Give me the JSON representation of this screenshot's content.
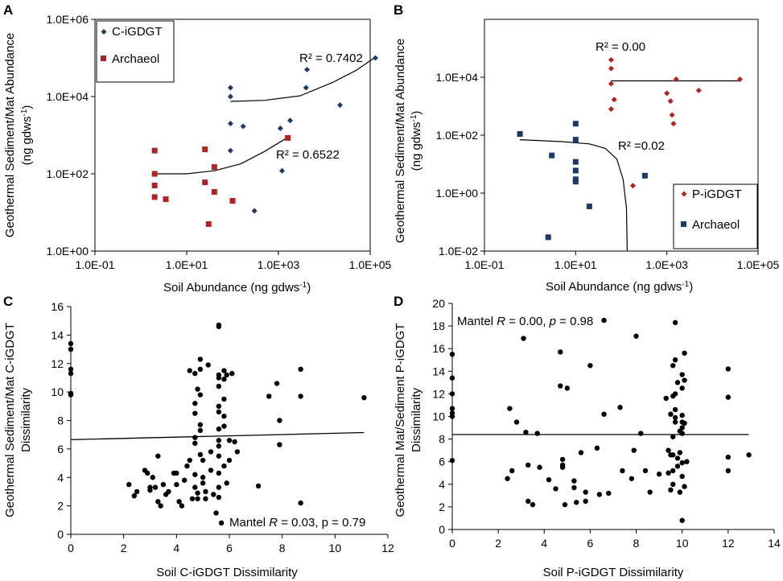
{
  "chart_data": [
    {
      "panel": "A",
      "type": "scatter",
      "xscale": "log",
      "yscale": "log",
      "xlim": [
        0.1,
        100000
      ],
      "ylim": [
        1,
        1000000
      ],
      "xticks": [
        0.1,
        10,
        1000,
        100000
      ],
      "xtick_labels": [
        "1.0E-01",
        "1.0E+01",
        "1.0E+03",
        "1.0E+05"
      ],
      "yticks": [
        1,
        100,
        10000,
        1000000
      ],
      "ytick_labels": [
        "1.0E+00",
        "1.0E+02",
        "1.0E+04",
        "1.0E+06"
      ],
      "xlabel_main": "Soil Abundance (ng gdws",
      "xlabel_sup": "-1",
      "xlabel_end": ")",
      "ylabel_line1": "Geothermal Sediment/Mat Abundance",
      "ylabel_line2_main": "(ng gdws",
      "ylabel_line2_sup": "-1",
      "ylabel_line2_end": ")",
      "legend_position": "top-left",
      "series": [
        {
          "name": "C-iGDGT",
          "marker": "diamond",
          "color": "#1f3864",
          "points": [
            [
              90,
              17000
            ],
            [
              90,
              2000
            ],
            [
              90,
              400
            ],
            [
              90,
              10000
            ],
            [
              170,
              1700
            ],
            [
              300,
              11
            ],
            [
              1100,
              1500
            ],
            [
              1200,
              120
            ],
            [
              1800,
              2400
            ],
            [
              4000,
              17000
            ],
            [
              4200,
              50000
            ],
            [
              22000,
              6000
            ],
            [
              130000,
              100000
            ]
          ],
          "trend": {
            "type": "poly",
            "points": [
              [
                90,
                7500
              ],
              [
                500,
                8000
              ],
              [
                3000,
                10500
              ],
              [
                15000,
                23000
              ],
              [
                50000,
                48000
              ],
              [
                130000,
                105000
              ]
            ]
          },
          "r2": "R² = 0.7402"
        },
        {
          "name": "Archaeol",
          "marker": "square",
          "color": "#b22222",
          "points": [
            [
              2,
              400
            ],
            [
              2,
              100
            ],
            [
              2,
              50
            ],
            [
              2,
              25
            ],
            [
              3.5,
              22
            ],
            [
              25,
              430
            ],
            [
              25,
              60
            ],
            [
              30,
              5
            ],
            [
              40,
              150
            ],
            [
              40,
              34
            ],
            [
              100,
              20
            ],
            [
              1600,
              850
            ]
          ],
          "trend": {
            "type": "poly",
            "points": [
              [
                2,
                100
              ],
              [
                10,
                100
              ],
              [
                40,
                120
              ],
              [
                150,
                180
              ],
              [
                500,
                380
              ],
              [
                1600,
                880
              ]
            ]
          },
          "r2": "R² = 0.6522"
        }
      ]
    },
    {
      "panel": "B",
      "type": "scatter",
      "xscale": "log",
      "yscale": "log",
      "xlim": [
        0.1,
        100000
      ],
      "ylim": [
        0.01,
        1000000
      ],
      "xticks": [
        0.1,
        10,
        1000,
        100000
      ],
      "xtick_labels": [
        "1.0E-01",
        "1.0E+01",
        "1.0E+03",
        "1.0E+05"
      ],
      "yticks": [
        0.01,
        1,
        100,
        10000
      ],
      "ytick_labels": [
        "1.0E-02",
        "1.0E+00",
        "1.0E+02",
        "1.0E+04"
      ],
      "xlabel_main": "Soil Abundance (ng gdws",
      "xlabel_sup": "-1",
      "xlabel_end": ")",
      "ylabel_line1": "Geothermal Sediment/Mat Abundance",
      "ylabel_line2_main": "(ng gdws",
      "ylabel_line2_sup": "-1",
      "ylabel_line2_end": ")",
      "legend_position": "bottom-right",
      "series": [
        {
          "name": "P-iGDGT",
          "marker": "diamond",
          "color": "#b22222",
          "points": [
            [
              60,
              40000
            ],
            [
              60,
              20000
            ],
            [
              60,
              6000
            ],
            [
              60,
              800
            ],
            [
              70,
              1700
            ],
            [
              180,
              1.8
            ],
            [
              1000,
              2800
            ],
            [
              1200,
              1500
            ],
            [
              1300,
              500
            ],
            [
              1400,
              250
            ],
            [
              1600,
              8500
            ],
            [
              5000,
              3500
            ],
            [
              40000,
              8500
            ]
          ],
          "trend": {
            "type": "flat",
            "points": [
              [
                60,
                7500
              ],
              [
                40000,
                7500
              ]
            ]
          },
          "r2": "R² = 0.00"
        },
        {
          "name": "Archaeol",
          "marker": "square",
          "color": "#1f3864",
          "points": [
            [
              0.6,
              110
            ],
            [
              2.5,
              0.03
            ],
            [
              3,
              20
            ],
            [
              10,
              250
            ],
            [
              10,
              70
            ],
            [
              10,
              12
            ],
            [
              10,
              6
            ],
            [
              10,
              3
            ],
            [
              10,
              2.5
            ],
            [
              20,
              0.35
            ],
            [
              330,
              4
            ]
          ],
          "trend": {
            "type": "poly",
            "points": [
              [
                0.6,
                70
              ],
              [
                5,
                60
              ],
              [
                20,
                50
              ],
              [
                45,
                35
              ],
              [
                80,
                15
              ],
              [
                110,
                3
              ],
              [
                130,
                0.3
              ],
              [
                135,
                0.01
              ]
            ]
          },
          "r2": "R² =0.02"
        }
      ]
    },
    {
      "panel": "C",
      "type": "scatter",
      "xlim": [
        0,
        12
      ],
      "ylim": [
        0,
        16
      ],
      "xticks": [
        0,
        2,
        4,
        6,
        8,
        10,
        12
      ],
      "yticks": [
        0,
        2,
        4,
        6,
        8,
        10,
        12,
        14,
        16
      ],
      "xlabel": "Soil C-iGDGT Dissimilarity",
      "ylabel_line1": "Geothermal Sediment/Mat C-iGDGT",
      "ylabel_line2": "Dissimilarity",
      "annotation": {
        "pre": "Mantel ",
        "r": "R",
        "post": " = 0.03, p = 0.79"
      },
      "trend": [
        [
          0,
          6.65
        ],
        [
          11.1,
          7.15
        ]
      ],
      "points": [
        [
          0,
          13.4
        ],
        [
          0,
          13
        ],
        [
          0,
          11.6
        ],
        [
          0,
          11.3
        ],
        [
          0,
          9.9
        ],
        [
          0,
          9.8
        ],
        [
          2.2,
          3.5
        ],
        [
          2.4,
          2.7
        ],
        [
          2.5,
          3.0
        ],
        [
          2.8,
          4.5
        ],
        [
          2.9,
          4.3
        ],
        [
          3.0,
          3.3
        ],
        [
          3.0,
          3.1
        ],
        [
          3.1,
          4.0
        ],
        [
          3.2,
          3.3
        ],
        [
          3.3,
          2.3
        ],
        [
          3.3,
          5.5
        ],
        [
          3.4,
          2.0
        ],
        [
          3.5,
          3.5
        ],
        [
          3.6,
          2.8
        ],
        [
          3.7,
          3.0
        ],
        [
          3.9,
          4.3
        ],
        [
          4.0,
          3.5
        ],
        [
          4.0,
          4.3
        ],
        [
          4.1,
          2.3
        ],
        [
          4.2,
          2.0
        ],
        [
          4.3,
          3.8
        ],
        [
          4.4,
          4.8
        ],
        [
          4.5,
          11.5
        ],
        [
          4.5,
          5.2
        ],
        [
          4.6,
          2.5
        ],
        [
          4.7,
          11.3
        ],
        [
          4.7,
          9.2
        ],
        [
          4.7,
          8.5
        ],
        [
          4.7,
          6.8
        ],
        [
          4.7,
          6.4
        ],
        [
          4.7,
          4.2
        ],
        [
          4.7,
          3.3
        ],
        [
          4.8,
          2.5
        ],
        [
          4.8,
          2.9
        ],
        [
          4.8,
          10.2
        ],
        [
          4.9,
          12.3
        ],
        [
          4.9,
          11.6
        ],
        [
          4.9,
          9.8
        ],
        [
          4.9,
          7.7
        ],
        [
          4.9,
          7.3
        ],
        [
          4.9,
          5.6
        ],
        [
          5.0,
          5.2
        ],
        [
          5.0,
          4.0
        ],
        [
          5.0,
          3.6
        ],
        [
          5.1,
          3.0
        ],
        [
          5.1,
          2.5
        ],
        [
          5.2,
          11.9
        ],
        [
          5.3,
          5.8
        ],
        [
          5.3,
          4.5
        ],
        [
          5.4,
          2.8
        ],
        [
          5.5,
          1.5
        ],
        [
          5.6,
          14.7
        ],
        [
          5.6,
          14.6
        ],
        [
          5.6,
          11.2
        ],
        [
          5.6,
          11.0
        ],
        [
          5.6,
          10.4
        ],
        [
          5.6,
          9.0
        ],
        [
          5.6,
          8.6
        ],
        [
          5.6,
          7.4
        ],
        [
          5.6,
          6.6
        ],
        [
          5.6,
          6.2
        ],
        [
          5.6,
          5.5
        ],
        [
          5.6,
          4.3
        ],
        [
          5.6,
          3.3
        ],
        [
          5.6,
          2.6
        ],
        [
          5.7,
          0.8
        ],
        [
          5.8,
          11.5
        ],
        [
          5.8,
          10.9
        ],
        [
          5.8,
          9.5
        ],
        [
          5.8,
          8.3
        ],
        [
          5.8,
          7.6
        ],
        [
          5.8,
          4.8
        ],
        [
          5.9,
          11.2
        ],
        [
          5.9,
          3.6
        ],
        [
          6.0,
          6.6
        ],
        [
          6.0,
          5.2
        ],
        [
          6.1,
          11.3
        ],
        [
          6.2,
          6.5
        ],
        [
          6.3,
          5.8
        ],
        [
          7.1,
          3.4
        ],
        [
          7.5,
          9.7
        ],
        [
          7.8,
          10.6
        ],
        [
          7.9,
          6.3
        ],
        [
          7.9,
          8.0
        ],
        [
          8.7,
          11.6
        ],
        [
          8.7,
          9.7
        ],
        [
          8.7,
          2.2
        ],
        [
          11.1,
          9.6
        ]
      ]
    },
    {
      "panel": "D",
      "type": "scatter",
      "xlim": [
        0,
        14
      ],
      "ylim": [
        0,
        20
      ],
      "xticks": [
        0,
        2,
        4,
        6,
        8,
        10,
        12,
        14
      ],
      "yticks": [
        0,
        2,
        4,
        6,
        8,
        10,
        12,
        14,
        16,
        18,
        20
      ],
      "xlabel": "Soil P-iGDGT Dissimilarity",
      "ylabel_line1": "Geothermal Mat/Sediment P-iGDGT",
      "ylabel_line2": "Dissimilarity",
      "annotation": {
        "pre": "Mantel ",
        "r": "R",
        "mid": " = 0.00, ",
        "p": "p",
        "post": " = 0.98"
      },
      "trend": [
        [
          0,
          8.4
        ],
        [
          12.9,
          8.4
        ]
      ],
      "points": [
        [
          0,
          15.5
        ],
        [
          0,
          13.4
        ],
        [
          0,
          12.0
        ],
        [
          0,
          10.7
        ],
        [
          0,
          10.3
        ],
        [
          0,
          10.0
        ],
        [
          0,
          6.1
        ],
        [
          2.4,
          4.5
        ],
        [
          2.5,
          10.7
        ],
        [
          2.6,
          5.2
        ],
        [
          2.8,
          9.5
        ],
        [
          3.1,
          16.9
        ],
        [
          3.2,
          8.6
        ],
        [
          3.3,
          5.7
        ],
        [
          3.3,
          2.5
        ],
        [
          3.5,
          2.2
        ],
        [
          3.7,
          8.5
        ],
        [
          3.8,
          5.5
        ],
        [
          4.2,
          4.4
        ],
        [
          4.5,
          3.6
        ],
        [
          4.7,
          15.7
        ],
        [
          4.7,
          12.7
        ],
        [
          4.8,
          5.5
        ],
        [
          4.8,
          5.7
        ],
        [
          4.8,
          6.2
        ],
        [
          4.9,
          2.2
        ],
        [
          5.0,
          12.5
        ],
        [
          5.3,
          3.7
        ],
        [
          5.3,
          4.3
        ],
        [
          5.4,
          2.4
        ],
        [
          5.6,
          6.8
        ],
        [
          5.8,
          2.5
        ],
        [
          5.8,
          3.3
        ],
        [
          6.0,
          14.5
        ],
        [
          6.3,
          7.2
        ],
        [
          6.4,
          3.1
        ],
        [
          6.6,
          18.5
        ],
        [
          6.6,
          10.2
        ],
        [
          6.8,
          3.2
        ],
        [
          7.3,
          10.8
        ],
        [
          7.4,
          5.2
        ],
        [
          7.8,
          4.5
        ],
        [
          7.9,
          7.0
        ],
        [
          8.0,
          17.1
        ],
        [
          8.2,
          8.5
        ],
        [
          8.4,
          5.2
        ],
        [
          8.6,
          3.3
        ],
        [
          9.0,
          4.9
        ],
        [
          9.3,
          11.6
        ],
        [
          9.4,
          7.0
        ],
        [
          9.4,
          5.0
        ],
        [
          9.5,
          3.5
        ],
        [
          9.5,
          6.6
        ],
        [
          9.5,
          10.2
        ],
        [
          9.6,
          14.5
        ],
        [
          9.6,
          11.8
        ],
        [
          9.6,
          8.2
        ],
        [
          9.6,
          6.6
        ],
        [
          9.6,
          5.2
        ],
        [
          9.6,
          4.0
        ],
        [
          9.7,
          18.3
        ],
        [
          9.7,
          15.0
        ],
        [
          9.7,
          12.0
        ],
        [
          9.7,
          10.6
        ],
        [
          9.7,
          9.9
        ],
        [
          9.7,
          9.5
        ],
        [
          9.8,
          13.0
        ],
        [
          9.8,
          6.3
        ],
        [
          9.8,
          5.6
        ],
        [
          9.9,
          8.7
        ],
        [
          9.9,
          6.8
        ],
        [
          9.9,
          3.3
        ],
        [
          10.0,
          13.7
        ],
        [
          10.0,
          12.5
        ],
        [
          10.0,
          10.1
        ],
        [
          10.0,
          9.5
        ],
        [
          10.0,
          9.0
        ],
        [
          10.0,
          8.5
        ],
        [
          10.0,
          5.9
        ],
        [
          10.0,
          4.7
        ],
        [
          10.0,
          0.8
        ],
        [
          10.1,
          15.6
        ],
        [
          10.1,
          13.2
        ],
        [
          10.1,
          9.4
        ],
        [
          10.1,
          3.8
        ],
        [
          10.2,
          6.0
        ],
        [
          12.0,
          14.2
        ],
        [
          12.0,
          11.7
        ],
        [
          12.0,
          6.4
        ],
        [
          12.0,
          5.2
        ],
        [
          12.9,
          6.6
        ]
      ]
    }
  ]
}
